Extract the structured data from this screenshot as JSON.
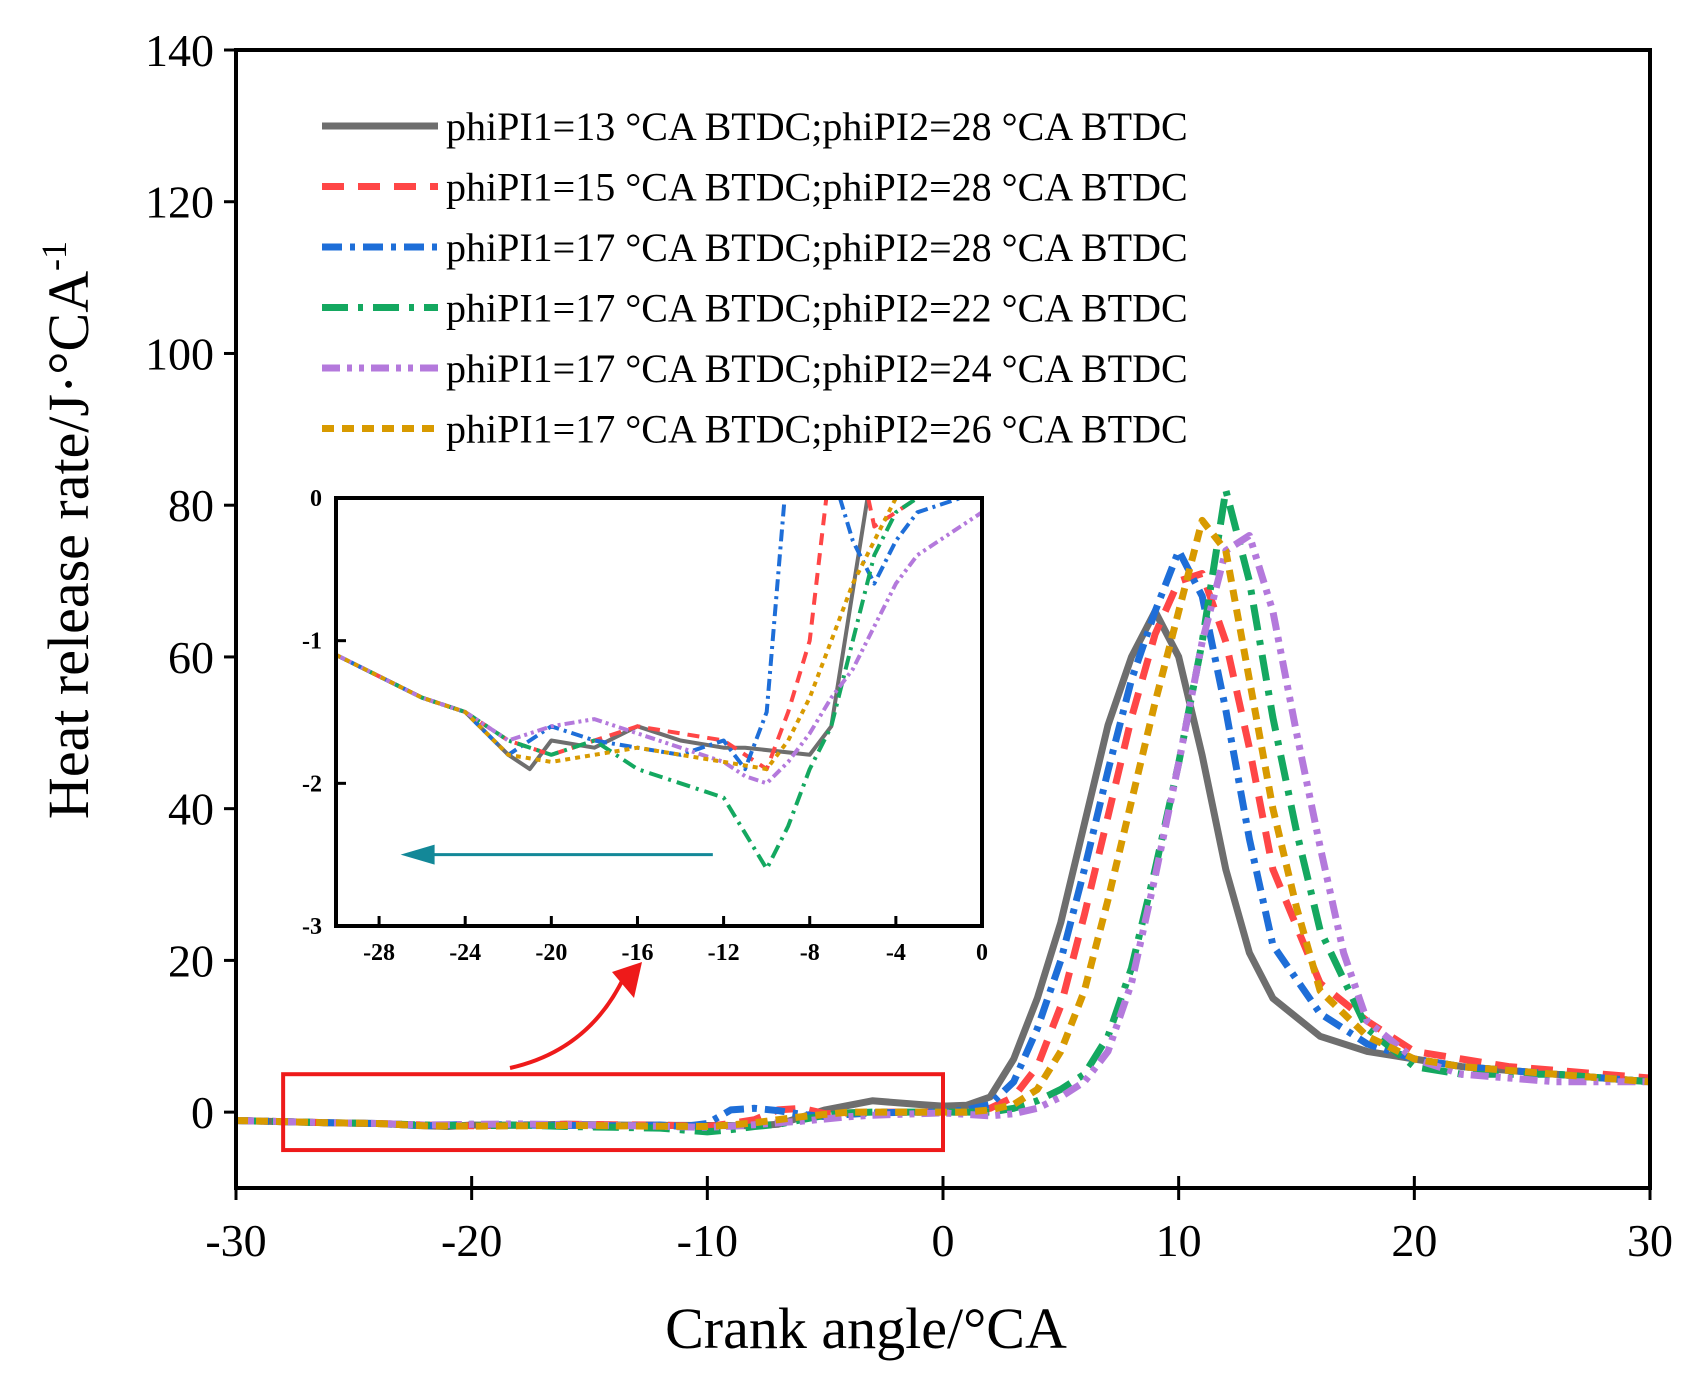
{
  "chart_data": {
    "type": "line",
    "xlabel": "Crank angle/°CA",
    "ylabel": "Heat release rate/J·°CA",
    "ylabel_superscript": "-1",
    "xlim": [
      -30,
      30
    ],
    "ylim": [
      -10,
      140
    ],
    "xticks": [
      -30,
      -20,
      -10,
      0,
      10,
      20,
      30
    ],
    "yticks": [
      0,
      20,
      40,
      60,
      80,
      100,
      120,
      140
    ],
    "legend_position": "top",
    "series": [
      {
        "name": "phiPI1=13 °CA BTDC;phiPI2=28 °CA BTDC",
        "color": "#6e6e6e",
        "dash": "solid",
        "x": [
          -30,
          -26,
          -24,
          -22,
          -21,
          -20,
          -18,
          -16,
          -14,
          -12,
          -11,
          -8,
          -7,
          -5,
          -3,
          -1,
          0,
          1,
          2,
          3,
          4,
          5,
          6,
          7,
          8,
          9,
          10,
          11,
          12,
          13,
          14,
          16,
          18,
          20,
          22,
          24,
          26,
          28,
          30
        ],
        "y": [
          -1.1,
          -1.4,
          -1.5,
          -1.8,
          -1.9,
          -1.7,
          -1.75,
          -1.6,
          -1.7,
          -1.75,
          -1.75,
          -1.8,
          -1.6,
          0.3,
          1.5,
          1,
          0.8,
          0.9,
          2,
          7,
          15,
          25,
          38,
          51,
          60,
          66,
          60,
          47,
          32,
          21,
          15,
          10,
          8,
          7,
          6,
          5.5,
          5,
          4.5,
          4
        ]
      },
      {
        "name": "phiPI1=15 °CA BTDC;phiPI2=28 °CA BTDC",
        "color": "#ff4646",
        "dash": "long-dash",
        "x": [
          -30,
          -26,
          -24,
          -22,
          -20,
          -18,
          -16,
          -14,
          -12,
          -10,
          -9,
          -8,
          -7,
          -6,
          -5,
          -4,
          -3,
          -1,
          0,
          1,
          2,
          3,
          4,
          5,
          6,
          7,
          8,
          9,
          10,
          11,
          12,
          13,
          14,
          16,
          18,
          20,
          22,
          24,
          26,
          28,
          30
        ],
        "y": [
          -1.1,
          -1.4,
          -1.5,
          -1.7,
          -1.8,
          -1.7,
          -1.6,
          -1.65,
          -1.7,
          -1.9,
          -1.5,
          -1,
          0.3,
          0.5,
          -0.2,
          -0.1,
          0,
          0,
          0,
          0,
          0.5,
          2,
          6,
          14,
          26,
          39,
          52,
          63,
          70,
          71,
          62,
          48,
          32,
          17,
          12,
          8,
          7,
          6,
          5.5,
          5,
          4.5
        ]
      },
      {
        "name": "phiPI1=17 °CA BTDC;phiPI2=28 °CA BTDC",
        "color": "#1e6ed8",
        "dash": "dash-dot",
        "x": [
          -30,
          -26,
          -24,
          -22,
          -20,
          -18,
          -16,
          -14,
          -12,
          -11,
          -10,
          -9,
          -8,
          -7,
          -6,
          -5,
          -4,
          -3,
          -1,
          0,
          1,
          2,
          3,
          4,
          5,
          6,
          7,
          8,
          9,
          10,
          11,
          12,
          13,
          14,
          16,
          18,
          20,
          22,
          24,
          26,
          28,
          30
        ],
        "y": [
          -1.1,
          -1.4,
          -1.5,
          -1.8,
          -1.6,
          -1.7,
          -1.75,
          -1.8,
          -1.7,
          -1.9,
          -1.5,
          0.3,
          0.5,
          0.2,
          -0.3,
          -0.6,
          -0.3,
          -0.1,
          0,
          0,
          0.3,
          1,
          4,
          11,
          20,
          32,
          45,
          57,
          66,
          74,
          68,
          53,
          36,
          22,
          13,
          9,
          7,
          6,
          5.5,
          5,
          4.5,
          4
        ]
      },
      {
        "name": "phiPI1=17 °CA BTDC;phiPI2=22 °CA BTDC",
        "color": "#14a860",
        "dash": "dash-dot-sparse",
        "x": [
          -30,
          -26,
          -24,
          -22,
          -20,
          -18,
          -16,
          -14,
          -12,
          -10,
          -9,
          -8,
          -7,
          -6,
          -5,
          -4,
          -3,
          -2,
          -1,
          0,
          1,
          2,
          3,
          4,
          5,
          6,
          7,
          8,
          9,
          10,
          11,
          12,
          13,
          14,
          15,
          16,
          18,
          20,
          22,
          24,
          26,
          28,
          30
        ],
        "y": [
          -1.1,
          -1.4,
          -1.5,
          -1.7,
          -1.8,
          -1.7,
          -1.9,
          -2,
          -2.1,
          -2.6,
          -2.3,
          -1.9,
          -1.6,
          -1,
          -0.4,
          -0.1,
          0,
          0,
          0,
          0,
          0,
          0,
          0.5,
          1.5,
          3,
          5,
          10,
          19,
          32,
          46,
          62,
          82,
          70,
          52,
          37,
          24,
          11,
          6,
          5,
          5,
          5,
          4.5,
          4
        ]
      },
      {
        "name": "phiPI1=17 °CA BTDC;phiPI2=24 °CA BTDC",
        "color": "#b479dc",
        "dash": "dash-dot-dot",
        "x": [
          -30,
          -26,
          -24,
          -22,
          -20,
          -18,
          -16,
          -14,
          -12,
          -11,
          -10,
          -9,
          -8,
          -7,
          -6,
          -5,
          -4,
          -3,
          -1,
          0,
          1,
          2,
          3,
          4,
          5,
          6,
          7,
          8,
          9,
          10,
          11,
          12,
          13,
          14,
          15,
          16,
          17,
          18,
          20,
          22,
          24,
          26,
          28,
          30
        ],
        "y": [
          -1.1,
          -1.4,
          -1.5,
          -1.7,
          -1.6,
          -1.55,
          -1.65,
          -1.75,
          -1.85,
          -1.95,
          -2,
          -1.85,
          -1.65,
          -1.4,
          -1.2,
          -0.9,
          -0.6,
          -0.4,
          -0.2,
          -0.1,
          -0.3,
          -0.5,
          -0.2,
          0.5,
          2,
          4,
          8,
          17,
          31,
          46,
          62,
          74,
          76,
          66,
          50,
          35,
          21,
          12,
          7,
          5,
          4.5,
          4,
          4,
          4
        ]
      },
      {
        "name": "phiPI1=17 °CA BTDC;phiPI2=26 °CA BTDC",
        "color": "#d89a00",
        "dash": "short-dash",
        "x": [
          -30,
          -26,
          -24,
          -22,
          -20,
          -18,
          -16,
          -14,
          -12,
          -10,
          -9,
          -8,
          -7,
          -6,
          -5,
          -4,
          -3,
          -1,
          0,
          1,
          2,
          3,
          4,
          5,
          6,
          7,
          8,
          9,
          10,
          11,
          12,
          13,
          14,
          15,
          16,
          18,
          20,
          22,
          24,
          26,
          28,
          30
        ],
        "y": [
          -1.1,
          -1.4,
          -1.5,
          -1.8,
          -1.85,
          -1.8,
          -1.75,
          -1.8,
          -1.85,
          -1.9,
          -1.7,
          -1.4,
          -1,
          -0.6,
          -0.3,
          0,
          0,
          0,
          0,
          0,
          0.3,
          1,
          3,
          8,
          16,
          28,
          41,
          54,
          66,
          78,
          74,
          57,
          40,
          27,
          16,
          10,
          7,
          6,
          5.5,
          5,
          4.5,
          4
        ]
      }
    ],
    "highlight_box": {
      "x_range": [
        -28,
        0
      ],
      "y_range": [
        -5,
        5
      ]
    },
    "inset": {
      "xlim": [
        -30,
        0
      ],
      "ylim": [
        -3,
        0
      ],
      "xticks": [
        -28,
        -24,
        -20,
        -16,
        -12,
        -8,
        -4,
        0
      ],
      "yticks": [
        0,
        -1,
        -2,
        -3
      ],
      "arrow": {
        "from_x": -12.5,
        "to_x": -27,
        "y": -2.5,
        "direction": "left",
        "color": "#138898"
      }
    }
  }
}
